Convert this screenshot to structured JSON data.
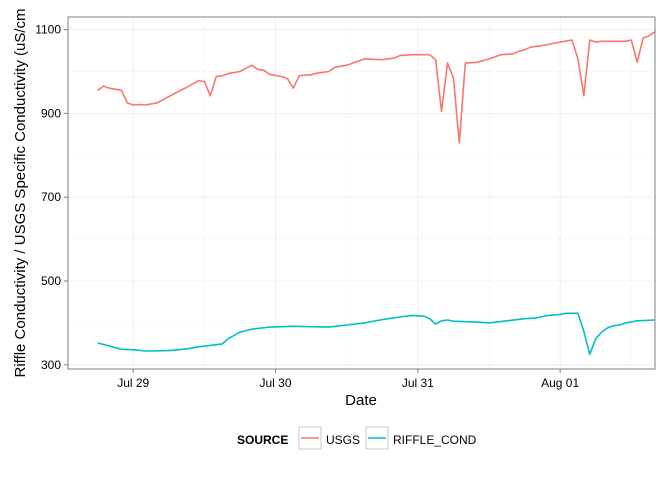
{
  "chart_data": {
    "type": "line",
    "xlabel": "Date",
    "ylabel": "Riffle Conductivity / USGS Specific Conductivity (uS/cm",
    "x_tick_labels": [
      "Jul 29",
      "Jul 30",
      "Jul 31",
      "Aug 01"
    ],
    "x_tick_values": [
      "2015-07-29",
      "2015-07-30",
      "2015-07-31",
      "2015-08-01"
    ],
    "xlim": [
      "2015-07-28T13:00",
      "2015-08-01T16:00"
    ],
    "y_ticks": [
      300,
      500,
      700,
      900,
      1100
    ],
    "ylim": [
      290,
      1130
    ],
    "grid": true,
    "legend": {
      "title": "SOURCE",
      "position": "bottom",
      "entries": [
        "USGS",
        "RIFFLE_COND"
      ]
    },
    "series": [
      {
        "name": "USGS",
        "color": "#F8766D",
        "points": [
          [
            "2015-07-28T18:00",
            955
          ],
          [
            "2015-07-28T19:00",
            965
          ],
          [
            "2015-07-28T20:00",
            960
          ],
          [
            "2015-07-28T22:00",
            955
          ],
          [
            "2015-07-28T23:00",
            925
          ],
          [
            "2015-07-29T00:00",
            920
          ],
          [
            "2015-07-29T01:00",
            921
          ],
          [
            "2015-07-29T02:00",
            920
          ],
          [
            "2015-07-29T04:00",
            925
          ],
          [
            "2015-07-29T06:00",
            940
          ],
          [
            "2015-07-29T08:00",
            955
          ],
          [
            "2015-07-29T09:00",
            962
          ],
          [
            "2015-07-29T11:00",
            978
          ],
          [
            "2015-07-29T12:00",
            976
          ],
          [
            "2015-07-29T13:00",
            942
          ],
          [
            "2015-07-29T14:00",
            988
          ],
          [
            "2015-07-29T15:00",
            990
          ],
          [
            "2015-07-29T16:00",
            995
          ],
          [
            "2015-07-29T18:00",
            1000
          ],
          [
            "2015-07-29T20:00",
            1015
          ],
          [
            "2015-07-29T21:00",
            1005
          ],
          [
            "2015-07-29T22:00",
            1003
          ],
          [
            "2015-07-29T23:00",
            993
          ],
          [
            "2015-07-30T01:00",
            988
          ],
          [
            "2015-07-30T02:00",
            983
          ],
          [
            "2015-07-30T03:00",
            960
          ],
          [
            "2015-07-30T04:00",
            990
          ],
          [
            "2015-07-30T06:00",
            992
          ],
          [
            "2015-07-30T07:00",
            996
          ],
          [
            "2015-07-30T09:00",
            1000
          ],
          [
            "2015-07-30T10:00",
            1010
          ],
          [
            "2015-07-30T12:00",
            1015
          ],
          [
            "2015-07-30T13:00",
            1020
          ],
          [
            "2015-07-30T15:00",
            1030
          ],
          [
            "2015-07-30T18:00",
            1028
          ],
          [
            "2015-07-30T20:00",
            1032
          ],
          [
            "2015-07-30T21:00",
            1038
          ],
          [
            "2015-07-30T23:00",
            1040
          ],
          [
            "2015-07-31T02:00",
            1040
          ],
          [
            "2015-07-31T03:00",
            1028
          ],
          [
            "2015-07-31T04:00",
            905
          ],
          [
            "2015-07-31T05:00",
            1020
          ],
          [
            "2015-07-31T06:00",
            985
          ],
          [
            "2015-07-31T07:00",
            830
          ],
          [
            "2015-07-31T08:00",
            1020
          ],
          [
            "2015-07-31T10:00",
            1022
          ],
          [
            "2015-07-31T12:00",
            1030
          ],
          [
            "2015-07-31T13:00",
            1035
          ],
          [
            "2015-07-31T14:00",
            1040
          ],
          [
            "2015-07-31T16:00",
            1042
          ],
          [
            "2015-07-31T17:00",
            1048
          ],
          [
            "2015-07-31T18:00",
            1052
          ],
          [
            "2015-07-31T19:00",
            1058
          ],
          [
            "2015-07-31T21:00",
            1062
          ],
          [
            "2015-08-01T00:00",
            1070
          ],
          [
            "2015-08-01T02:00",
            1075
          ],
          [
            "2015-08-01T03:00",
            1030
          ],
          [
            "2015-08-01T04:00",
            942
          ],
          [
            "2015-08-01T05:00",
            1075
          ],
          [
            "2015-08-01T06:00",
            1070
          ],
          [
            "2015-08-01T07:00",
            1072
          ],
          [
            "2015-08-01T11:00",
            1072
          ],
          [
            "2015-08-01T12:00",
            1075
          ],
          [
            "2015-08-01T13:00",
            1022
          ],
          [
            "2015-08-01T14:00",
            1080
          ],
          [
            "2015-08-01T15:00",
            1085
          ],
          [
            "2015-08-01T16:00",
            1095
          ]
        ]
      },
      {
        "name": "RIFFLE_COND",
        "color": "#00BFC4",
        "points": [
          [
            "2015-07-28T18:00",
            352
          ],
          [
            "2015-07-28T20:00",
            345
          ],
          [
            "2015-07-28T22:00",
            337
          ],
          [
            "2015-07-29T00:00",
            336
          ],
          [
            "2015-07-29T02:00",
            333
          ],
          [
            "2015-07-29T03:00",
            333
          ],
          [
            "2015-07-29T06:00",
            334
          ],
          [
            "2015-07-29T09:00",
            338
          ],
          [
            "2015-07-29T11:00",
            343
          ],
          [
            "2015-07-29T14:00",
            348
          ],
          [
            "2015-07-29T15:00",
            350
          ],
          [
            "2015-07-29T16:00",
            362
          ],
          [
            "2015-07-29T18:00",
            378
          ],
          [
            "2015-07-29T20:00",
            385
          ],
          [
            "2015-07-29T23:00",
            390
          ],
          [
            "2015-07-30T03:00",
            392
          ],
          [
            "2015-07-30T06:00",
            391
          ],
          [
            "2015-07-30T09:00",
            390
          ],
          [
            "2015-07-30T12:00",
            395
          ],
          [
            "2015-07-30T15:00",
            400
          ],
          [
            "2015-07-30T18:00",
            408
          ],
          [
            "2015-07-30T21:00",
            414
          ],
          [
            "2015-07-30T23:00",
            418
          ],
          [
            "2015-07-31T01:00",
            416
          ],
          [
            "2015-07-31T02:00",
            410
          ],
          [
            "2015-07-31T03:00",
            397
          ],
          [
            "2015-07-31T04:00",
            405
          ],
          [
            "2015-07-31T05:00",
            407
          ],
          [
            "2015-07-31T06:00",
            404
          ],
          [
            "2015-07-31T10:00",
            402
          ],
          [
            "2015-07-31T12:00",
            400
          ],
          [
            "2015-07-31T15:00",
            405
          ],
          [
            "2015-07-31T18:00",
            410
          ],
          [
            "2015-07-31T20:00",
            412
          ],
          [
            "2015-07-31T22:00",
            418
          ],
          [
            "2015-08-01T00:00",
            420
          ],
          [
            "2015-08-01T01:00",
            423
          ],
          [
            "2015-08-01T03:00",
            423
          ],
          [
            "2015-08-01T04:00",
            380
          ],
          [
            "2015-08-01T05:00",
            325
          ],
          [
            "2015-08-01T06:00",
            362
          ],
          [
            "2015-08-01T07:00",
            378
          ],
          [
            "2015-08-01T08:00",
            388
          ],
          [
            "2015-08-01T09:00",
            393
          ],
          [
            "2015-08-01T10:00",
            395
          ],
          [
            "2015-08-01T11:00",
            400
          ],
          [
            "2015-08-01T13:00",
            405
          ],
          [
            "2015-08-01T16:00",
            407
          ]
        ]
      }
    ]
  }
}
